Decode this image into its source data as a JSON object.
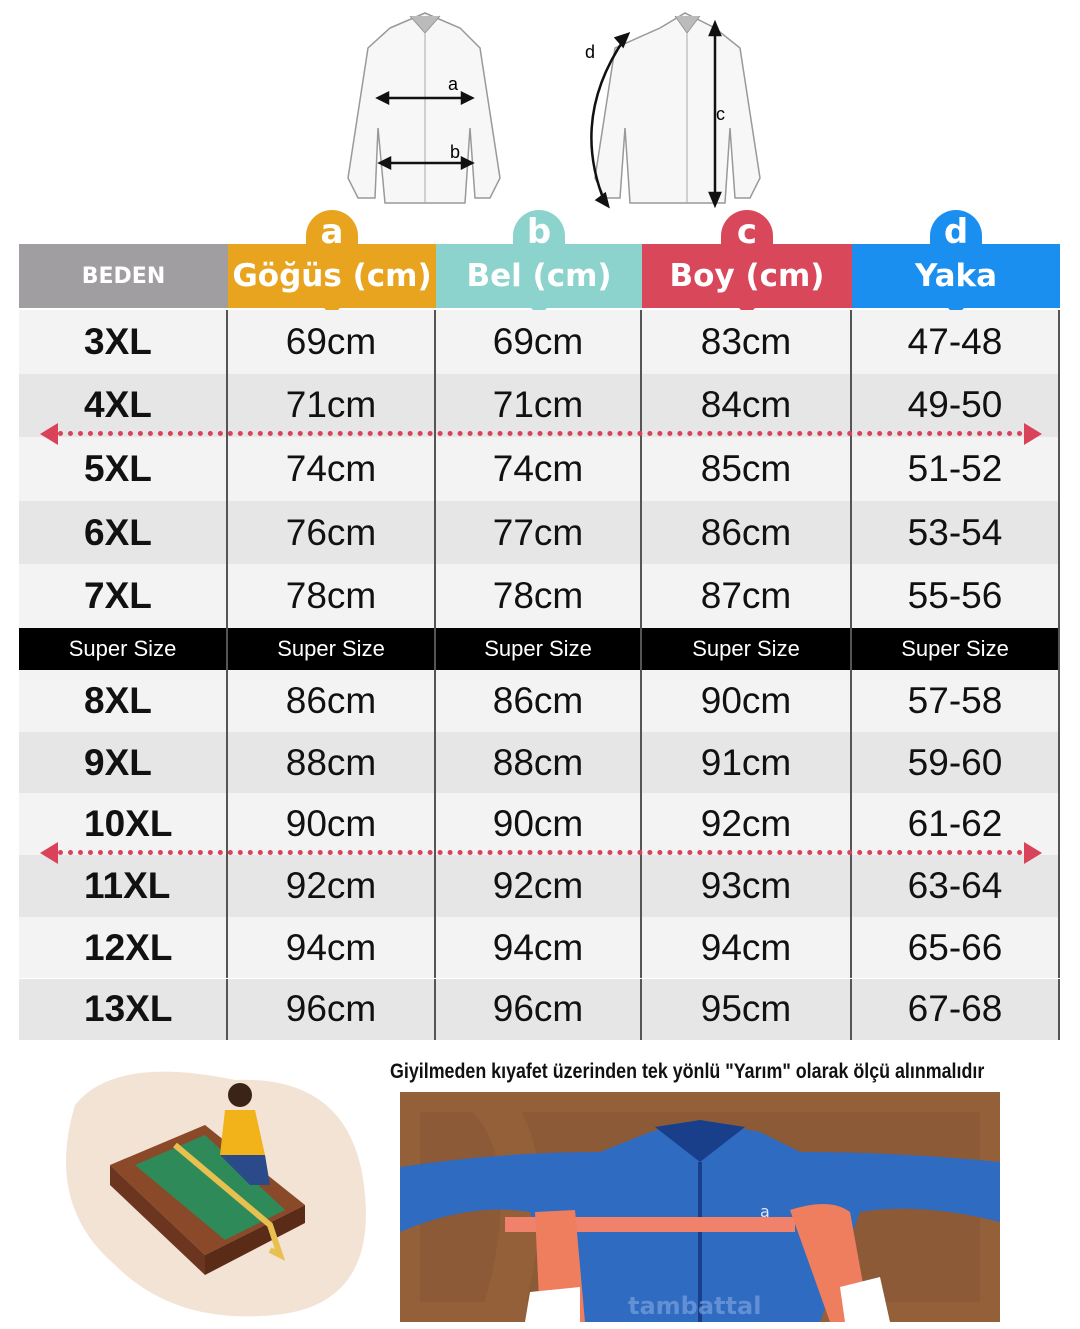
{
  "diagram_labels": {
    "a": "a",
    "b": "b",
    "c": "c",
    "d": "d"
  },
  "headers": [
    {
      "label": "BEDEN",
      "badge": "",
      "color": "#a09ea1"
    },
    {
      "label": "Göğüs (cm)",
      "badge": "a",
      "color": "#e9a41f"
    },
    {
      "label": "Bel (cm)",
      "badge": "b",
      "color": "#8dd3cd"
    },
    {
      "label": "Boy (cm)",
      "badge": "c",
      "color": "#d9475a"
    },
    {
      "label": "Yaka",
      "badge": "d",
      "color": "#1a8ff0"
    }
  ],
  "rows_regular": [
    [
      "3XL",
      "69cm",
      "69cm",
      "83cm",
      "47-48"
    ],
    [
      "4XL",
      "71cm",
      "71cm",
      "84cm",
      "49-50"
    ],
    [
      "5XL",
      "74cm",
      "74cm",
      "85cm",
      "51-52"
    ],
    [
      "6XL",
      "76cm",
      "77cm",
      "86cm",
      "53-54"
    ],
    [
      "7XL",
      "78cm",
      "78cm",
      "87cm",
      "55-56"
    ]
  ],
  "super_size_label": [
    "Super Size",
    "Super Size",
    "Super Size",
    "Super Size",
    "Super Size"
  ],
  "rows_super": [
    [
      "8XL",
      "86cm",
      "86cm",
      "90cm",
      "57-58"
    ],
    [
      "9XL",
      "88cm",
      "88cm",
      "91cm",
      "59-60"
    ],
    [
      "10XL",
      "90cm",
      "90cm",
      "92cm",
      "61-62"
    ],
    [
      "11XL",
      "92cm",
      "92cm",
      "93cm",
      "63-64"
    ],
    [
      "12XL",
      "94cm",
      "94cm",
      "94cm",
      "65-66"
    ],
    [
      "13XL",
      "96cm",
      "96cm",
      "95cm",
      "67-68"
    ]
  ],
  "caption": "Giyilmeden kıyafet üzerinden tek yönlü \"Yarım\" olarak ölçü alınmalıdır",
  "watermark": "tambattal",
  "shirt_badge": "a"
}
